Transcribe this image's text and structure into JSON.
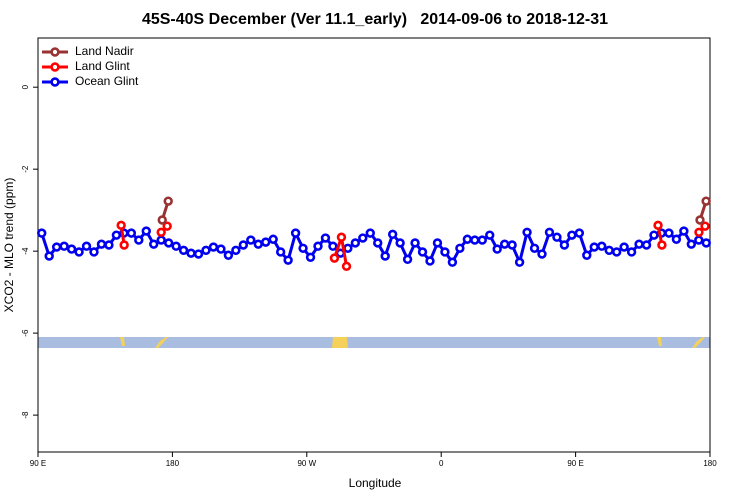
{
  "chart_data": {
    "type": "line",
    "title": "45S-40S December (Ver 11.1_early)   2014-09-06 to 2018-12-31",
    "x_label": "Longitude",
    "y_label": "XCO2 - MLO trend (ppm)",
    "xlim": [
      90,
      540
    ],
    "xticks": [
      {
        "value": 90,
        "label": "90 E"
      },
      {
        "value": 180,
        "label": "180"
      },
      {
        "value": 270,
        "label": "90 W"
      },
      {
        "value": 360,
        "label": "0"
      },
      {
        "value": 450,
        "label": "90 E"
      },
      {
        "value": 540,
        "label": "180"
      }
    ],
    "ylim": [
      -8.9,
      1.2
    ],
    "yticks": [
      0,
      -2,
      -4,
      -6,
      -8
    ],
    "legend": "top-left",
    "series": [
      {
        "name": "Land Nadir",
        "color": "#993333",
        "x": [
          173.2,
          177.2,
          null,
          533.3,
          537.4
        ],
        "values": [
          -3.24,
          -2.78,
          null,
          -3.24,
          -2.78
        ]
      },
      {
        "name": "Land Glint",
        "color": "#ff0000",
        "x": [
          145.7,
          147.7,
          null,
          172.5,
          176.5,
          null,
          288.5,
          293.2,
          296.6,
          null,
          505.2,
          507.8,
          null,
          532.6,
          536.7
        ],
        "values": [
          -3.37,
          -3.85,
          null,
          -3.54,
          -3.39,
          null,
          -4.17,
          -3.66,
          -4.37,
          null,
          -3.37,
          -3.85,
          null,
          -3.54,
          -3.39
        ]
      },
      {
        "name": "Ocean Glint",
        "color": "#0000ee",
        "x": [
          92.5,
          97.5,
          102.5,
          107.5,
          112.5,
          117.5,
          122.5,
          127.5,
          132.5,
          137.5,
          142.5,
          147.5,
          152.5,
          157.5,
          162.5,
          167.5,
          172.5,
          177.5,
          182.5,
          187.5,
          192.5,
          197.5,
          202.5,
          207.5,
          212.5,
          217.5,
          222.5,
          227.5,
          232.5,
          237.5,
          242.5,
          247.5,
          252.5,
          257.5,
          262.5,
          267.5,
          272.5,
          277.5,
          282.5,
          287.5,
          292.5,
          297.5,
          302.5,
          307.5,
          312.5,
          317.5,
          322.5,
          327.5,
          332.5,
          337.5,
          342.5,
          347.5,
          352.5,
          357.5,
          362.5,
          367.5,
          372.5,
          377.5,
          382.5,
          387.5,
          392.5,
          397.5,
          402.5,
          407.5,
          412.5,
          417.5,
          422.5,
          427.5,
          432.5,
          437.5,
          442.5,
          447.5,
          452.5,
          457.5,
          462.5,
          467.5,
          472.5,
          477.5,
          482.5,
          487.5,
          492.5,
          497.5,
          502.5,
          507.5,
          512.5,
          517.5,
          522.5,
          527.5,
          532.5,
          537.5
        ],
        "values": [
          -3.56,
          -4.12,
          -3.9,
          -3.88,
          -3.95,
          -4.02,
          -3.88,
          -4.02,
          -3.83,
          -3.85,
          -3.61,
          -3.56,
          -3.56,
          -3.73,
          -3.51,
          -3.83,
          -3.73,
          -3.8,
          -3.88,
          -3.98,
          -4.05,
          -4.07,
          -3.98,
          -3.9,
          -3.95,
          -4.1,
          -3.98,
          -3.85,
          -3.73,
          -3.83,
          -3.78,
          -3.71,
          -4.02,
          -4.22,
          -3.56,
          -3.93,
          -4.15,
          -3.88,
          -3.68,
          -3.88,
          -4.05,
          -3.93,
          -3.8,
          -3.68,
          -3.56,
          -3.8,
          -4.12,
          -3.59,
          -3.8,
          -4.2,
          -3.8,
          -4.02,
          -4.24,
          -3.8,
          -4.02,
          -4.27,
          -3.93,
          -3.71,
          -3.73,
          -3.73,
          -3.61,
          -3.95,
          -3.83,
          -3.85,
          -4.27,
          -3.54,
          -3.93,
          -4.07,
          -3.54,
          -3.66,
          -3.85,
          -3.61,
          -3.56,
          -4.1,
          -3.9,
          -3.88,
          -3.98,
          -4.02,
          -3.9,
          -4.02,
          -3.83,
          -3.85,
          -3.61,
          -3.56,
          -3.56,
          -3.71,
          -3.51,
          -3.83,
          -3.73,
          -3.8
        ]
      }
    ]
  }
}
